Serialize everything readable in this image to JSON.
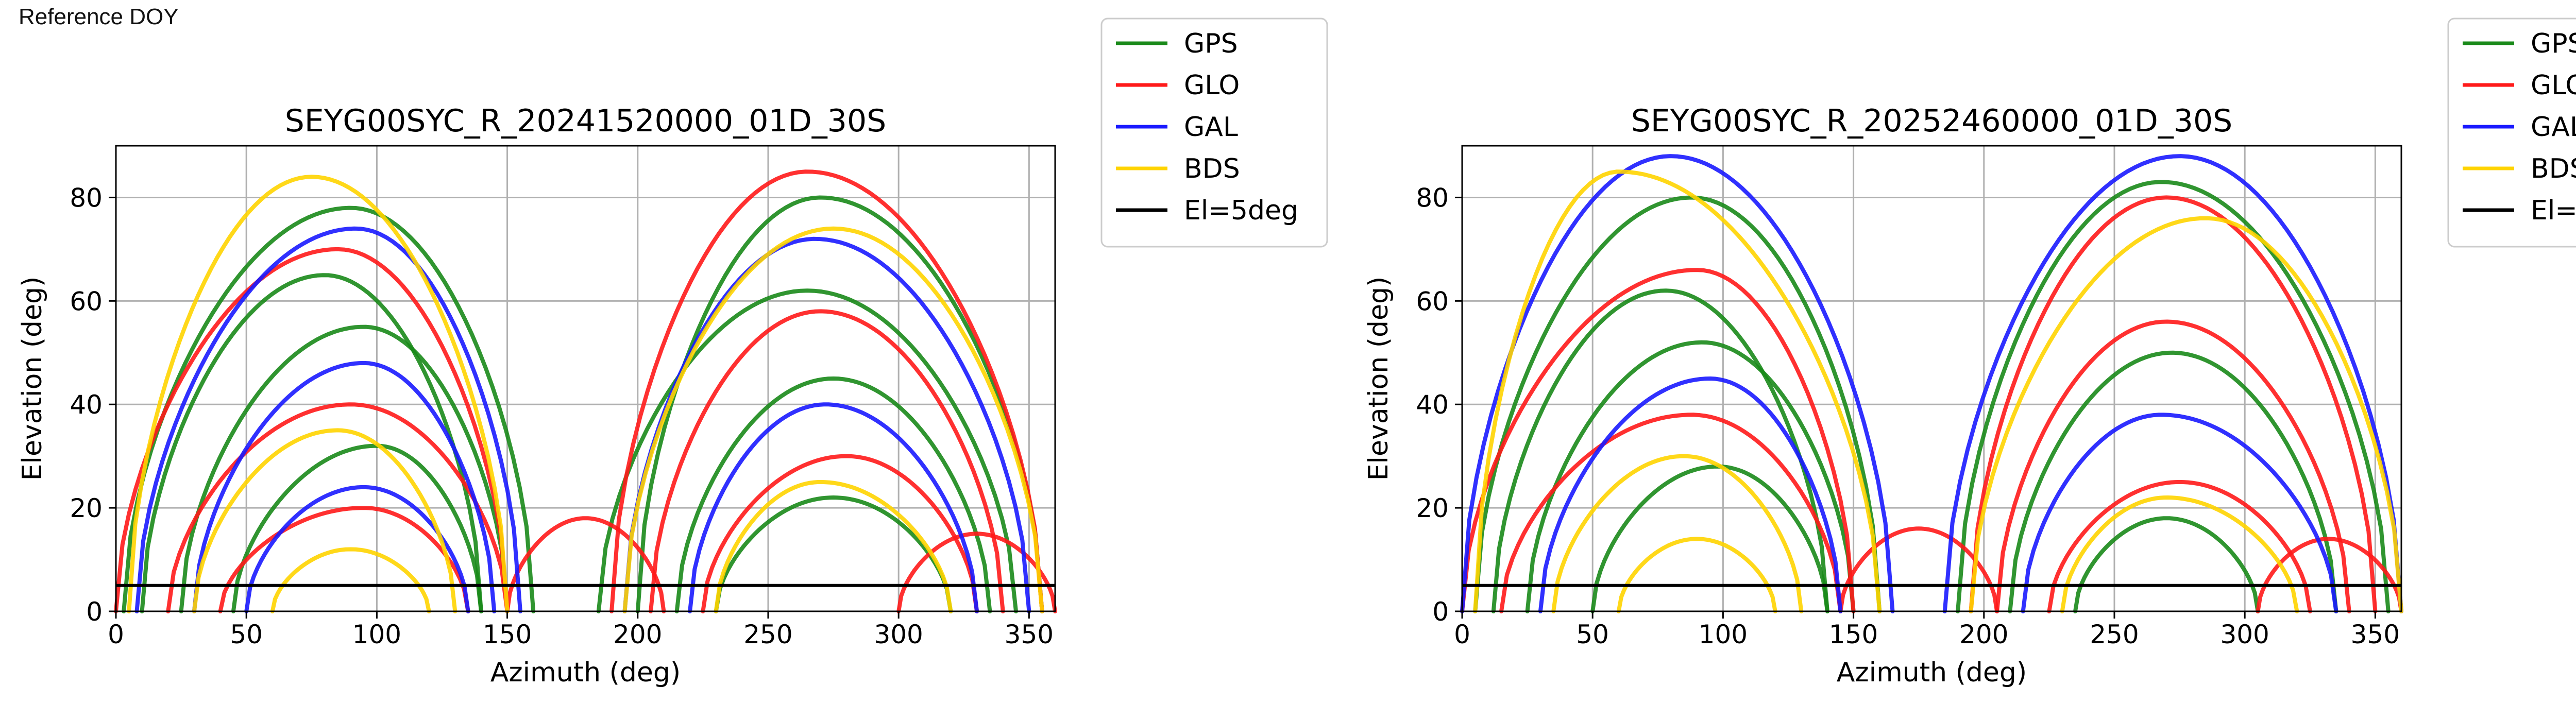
{
  "header": {
    "corner_label": "Reference DOY"
  },
  "legend": {
    "entries": [
      {
        "label": "GPS",
        "color": "#1a8a1a"
      },
      {
        "label": "GLO",
        "color": "#ff1a1a"
      },
      {
        "label": "GAL",
        "color": "#1a1aff"
      },
      {
        "label": "BDS",
        "color": "#ffd400"
      },
      {
        "label": "El=5deg",
        "color": "#000000"
      }
    ]
  },
  "chart_data": [
    {
      "type": "scatter",
      "title": "SEYG00SYC_R_20241520000_01D_30S",
      "xlabel": "Azimuth (deg)",
      "ylabel": "Elevation (deg)",
      "xlim": [
        0,
        360
      ],
      "ylim": [
        0,
        90
      ],
      "xticks": [
        0,
        50,
        100,
        150,
        200,
        250,
        300,
        350
      ],
      "yticks": [
        0,
        20,
        40,
        60,
        80
      ],
      "grid": true,
      "legend_placement": "outside-right",
      "reference_line": {
        "name": "El=5deg",
        "y": 5
      },
      "series": [
        {
          "name": "GPS",
          "color": "#1a8a1a",
          "tracks": [
            {
              "az_start": 3,
              "az_end": 160,
              "peak_az": 90,
              "peak_el": 78
            },
            {
              "az_start": 25,
              "az_end": 150,
              "peak_az": 95,
              "peak_el": 55
            },
            {
              "az_start": 45,
              "az_end": 140,
              "peak_az": 100,
              "peak_el": 32
            },
            {
              "az_start": 200,
              "az_end": 355,
              "peak_az": 270,
              "peak_el": 80
            },
            {
              "az_start": 215,
              "az_end": 335,
              "peak_az": 275,
              "peak_el": 45
            },
            {
              "az_start": 230,
              "az_end": 320,
              "peak_az": 275,
              "peak_el": 22
            },
            {
              "az_start": 10,
              "az_end": 140,
              "peak_az": 80,
              "peak_el": 65
            },
            {
              "az_start": 185,
              "az_end": 345,
              "peak_az": 265,
              "peak_el": 62
            }
          ]
        },
        {
          "name": "GLO",
          "color": "#ff1a1a",
          "tracks": [
            {
              "az_start": 0,
              "az_end": 150,
              "peak_az": 85,
              "peak_el": 70
            },
            {
              "az_start": 20,
              "az_end": 150,
              "peak_az": 90,
              "peak_el": 40
            },
            {
              "az_start": 40,
              "az_end": 135,
              "peak_az": 95,
              "peak_el": 20
            },
            {
              "az_start": 190,
              "az_end": 355,
              "peak_az": 265,
              "peak_el": 85
            },
            {
              "az_start": 205,
              "az_end": 340,
              "peak_az": 270,
              "peak_el": 58
            },
            {
              "az_start": 225,
              "az_end": 330,
              "peak_az": 280,
              "peak_el": 30
            },
            {
              "az_start": 150,
              "az_end": 210,
              "peak_az": 180,
              "peak_el": 18
            },
            {
              "az_start": 300,
              "az_end": 360,
              "peak_az": 330,
              "peak_el": 15
            }
          ]
        },
        {
          "name": "GAL",
          "color": "#1a1aff",
          "tracks": [
            {
              "az_start": 8,
              "az_end": 155,
              "peak_az": 92,
              "peak_el": 74
            },
            {
              "az_start": 30,
              "az_end": 145,
              "peak_az": 95,
              "peak_el": 48
            },
            {
              "az_start": 195,
              "az_end": 350,
              "peak_az": 268,
              "peak_el": 72
            },
            {
              "az_start": 220,
              "az_end": 330,
              "peak_az": 272,
              "peak_el": 40
            },
            {
              "az_start": 50,
              "az_end": 135,
              "peak_az": 95,
              "peak_el": 24
            }
          ]
        },
        {
          "name": "BDS",
          "color": "#ffd400",
          "tracks": [
            {
              "az_start": 5,
              "az_end": 150,
              "peak_az": 75,
              "peak_el": 84
            },
            {
              "az_start": 30,
              "az_end": 130,
              "peak_az": 85,
              "peak_el": 35
            },
            {
              "az_start": 195,
              "az_end": 355,
              "peak_az": 275,
              "peak_el": 74
            },
            {
              "az_start": 230,
              "az_end": 320,
              "peak_az": 270,
              "peak_el": 25
            },
            {
              "az_start": 60,
              "az_end": 120,
              "peak_az": 90,
              "peak_el": 12
            }
          ]
        }
      ]
    },
    {
      "type": "scatter",
      "title": "SEYG00SYC_R_20252460000_01D_30S",
      "xlabel": "Azimuth (deg)",
      "ylabel": "Elevation (deg)",
      "xlim": [
        0,
        360
      ],
      "ylim": [
        0,
        90
      ],
      "xticks": [
        0,
        50,
        100,
        150,
        200,
        250,
        300,
        350
      ],
      "yticks": [
        0,
        20,
        40,
        60,
        80
      ],
      "grid": true,
      "legend_placement": "outside-right",
      "reference_line": {
        "name": "El=5deg",
        "y": 5
      },
      "series": [
        {
          "name": "GPS",
          "color": "#1a8a1a",
          "tracks": [
            {
              "az_start": 5,
              "az_end": 160,
              "peak_az": 88,
              "peak_el": 80
            },
            {
              "az_start": 25,
              "az_end": 150,
              "peak_az": 92,
              "peak_el": 52
            },
            {
              "az_start": 50,
              "az_end": 140,
              "peak_az": 98,
              "peak_el": 28
            },
            {
              "az_start": 190,
              "az_end": 355,
              "peak_az": 268,
              "peak_el": 83
            },
            {
              "az_start": 210,
              "az_end": 335,
              "peak_az": 272,
              "peak_el": 50
            },
            {
              "az_start": 235,
              "az_end": 305,
              "peak_az": 270,
              "peak_el": 18
            },
            {
              "az_start": 12,
              "az_end": 140,
              "peak_az": 78,
              "peak_el": 62
            }
          ]
        },
        {
          "name": "GLO",
          "color": "#ff1a1a",
          "tracks": [
            {
              "az_start": 0,
              "az_end": 150,
              "peak_az": 90,
              "peak_el": 66
            },
            {
              "az_start": 15,
              "az_end": 145,
              "peak_az": 88,
              "peak_el": 38
            },
            {
              "az_start": 195,
              "az_end": 350,
              "peak_az": 270,
              "peak_el": 80
            },
            {
              "az_start": 205,
              "az_end": 340,
              "peak_az": 270,
              "peak_el": 56
            },
            {
              "az_start": 225,
              "az_end": 325,
              "peak_az": 275,
              "peak_el": 25
            },
            {
              "az_start": 145,
              "az_end": 205,
              "peak_az": 175,
              "peak_el": 16
            },
            {
              "az_start": 305,
              "az_end": 360,
              "peak_az": 332,
              "peak_el": 14
            }
          ]
        },
        {
          "name": "GAL",
          "color": "#1a1aff",
          "tracks": [
            {
              "az_start": 0,
              "az_end": 165,
              "peak_az": 80,
              "peak_el": 88
            },
            {
              "az_start": 185,
              "az_end": 360,
              "peak_az": 275,
              "peak_el": 88
            },
            {
              "az_start": 30,
              "az_end": 145,
              "peak_az": 95,
              "peak_el": 45
            },
            {
              "az_start": 215,
              "az_end": 335,
              "peak_az": 268,
              "peak_el": 38
            }
          ]
        },
        {
          "name": "BDS",
          "color": "#ffd400",
          "tracks": [
            {
              "az_start": 5,
              "az_end": 160,
              "peak_az": 60,
              "peak_el": 85
            },
            {
              "az_start": 35,
              "az_end": 130,
              "peak_az": 85,
              "peak_el": 30
            },
            {
              "az_start": 195,
              "az_end": 360,
              "peak_az": 285,
              "peak_el": 76
            },
            {
              "az_start": 230,
              "az_end": 320,
              "peak_az": 270,
              "peak_el": 22
            },
            {
              "az_start": 60,
              "az_end": 120,
              "peak_az": 90,
              "peak_el": 14
            }
          ]
        }
      ]
    }
  ]
}
